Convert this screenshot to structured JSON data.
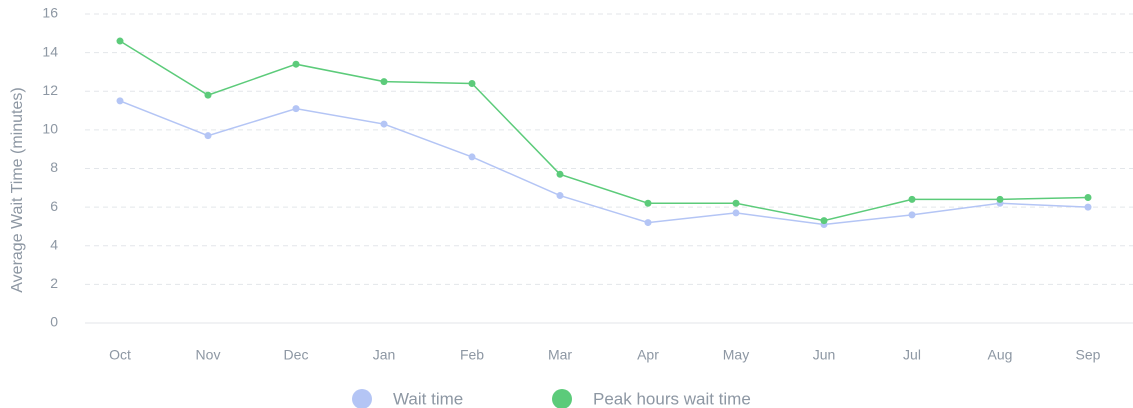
{
  "chart_data": {
    "type": "line",
    "y_label": "Average Wait Time (minutes)",
    "categories": [
      "Oct",
      "Nov",
      "Dec",
      "Jan",
      "Feb",
      "Mar",
      "Apr",
      "May",
      "Jun",
      "Jul",
      "Aug",
      "Sep"
    ],
    "series": [
      {
        "name": "Wait time",
        "color": "#b4c5f5",
        "values": [
          11.5,
          9.7,
          11.1,
          10.3,
          8.6,
          6.6,
          5.2,
          5.7,
          5.1,
          5.6,
          6.2,
          6.0
        ]
      },
      {
        "name": "Peak hours wait time",
        "color": "#5ccb7a",
        "values": [
          14.6,
          11.8,
          13.4,
          12.5,
          12.4,
          7.7,
          6.2,
          6.2,
          5.3,
          6.4,
          6.4,
          6.5
        ]
      }
    ],
    "ylim": [
      0,
      16
    ],
    "yticks": [
      0,
      2,
      4,
      6,
      8,
      10,
      12,
      14,
      16
    ],
    "grid": true
  }
}
